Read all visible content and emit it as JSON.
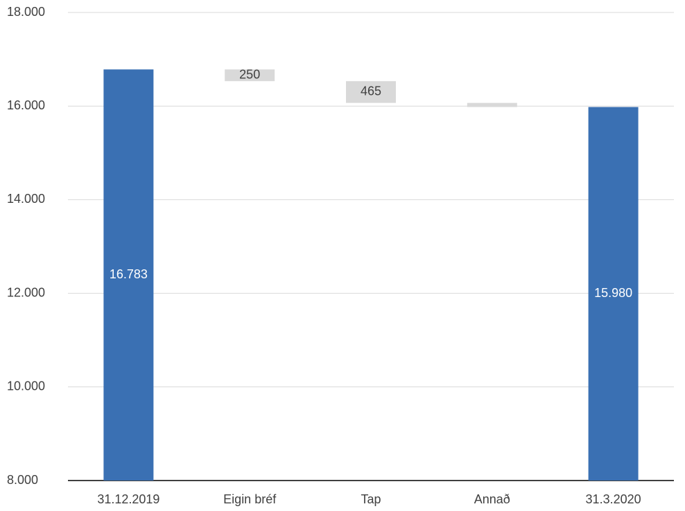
{
  "chart_data": {
    "type": "waterfall",
    "categories": [
      "31.12.2019",
      "Eigin bréf",
      "Tap",
      "Annað",
      "31.3.2020"
    ],
    "values": [
      16783,
      -250,
      -465,
      -88,
      15980
    ],
    "value_labels": [
      "16.783",
      "250",
      "465",
      null,
      "15.980"
    ],
    "totals": [
      true,
      false,
      false,
      false,
      true
    ],
    "total_color": "#3a70b3",
    "decrease_color": "#d9d9d9",
    "ylim": [
      8000,
      18000
    ],
    "yticks": [
      {
        "value": 8000,
        "label": "8.000"
      },
      {
        "value": 10000,
        "label": "10.000"
      },
      {
        "value": 12000,
        "label": "12.000"
      },
      {
        "value": 14000,
        "label": "14.000"
      },
      {
        "value": 16000,
        "label": "16.000"
      },
      {
        "value": 18000,
        "label": "18.000"
      }
    ],
    "grid": true
  }
}
